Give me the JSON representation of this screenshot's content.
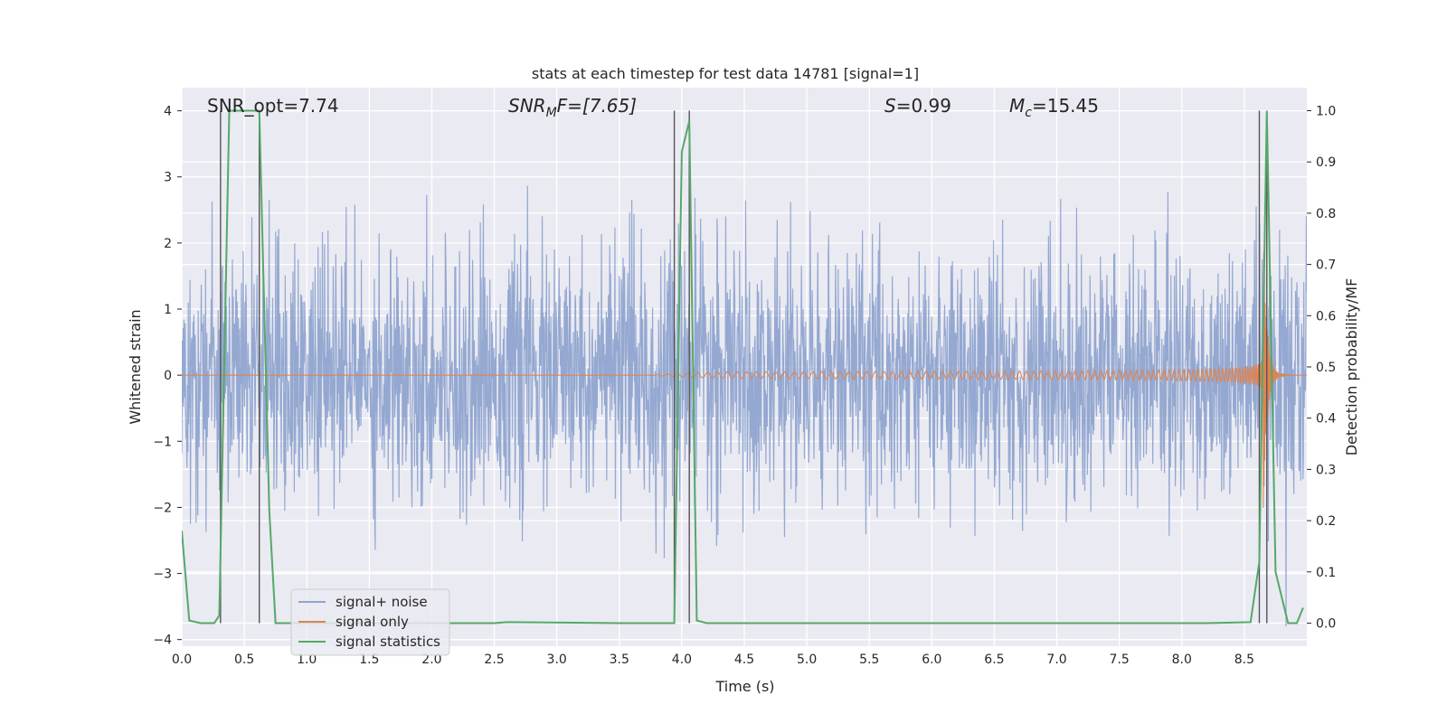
{
  "chart_data": {
    "type": "line",
    "title": "stats at each timestep for test data 14781 [signal=1]",
    "xlabel": "Time (s)",
    "ylabel_left": "Whitened strain",
    "ylabel_right": "Detection probability/MF",
    "xlim": [
      0.0,
      9.0
    ],
    "ylim_left": [
      -4.1,
      4.35
    ],
    "ylim_right": [
      -0.045,
      1.045
    ],
    "x_ticks": [
      "0.0",
      "0.5",
      "1.0",
      "1.5",
      "2.0",
      "2.5",
      "3.0",
      "3.5",
      "4.0",
      "4.5",
      "5.0",
      "5.5",
      "6.0",
      "6.5",
      "7.0",
      "7.5",
      "8.0",
      "8.5"
    ],
    "y_left_ticks": [
      "4",
      "3",
      "2",
      "1",
      "0",
      "−1",
      "−2",
      "−3",
      "−4"
    ],
    "y_right_ticks": [
      "1.0",
      "0.9",
      "0.8",
      "0.7",
      "0.6",
      "0.5",
      "0.4",
      "0.3",
      "0.2",
      "0.1",
      "0.0"
    ],
    "grid": true,
    "legend_position": "lower-left",
    "annotations": {
      "snr_opt": "SNR_opt=7.74",
      "snr_mf_label": "SNR",
      "snr_mf_sub": "M",
      "snr_mf_rest": "F=[7.65]",
      "s_italic": "S",
      "s_value": "=0.99",
      "mc_italic": "M",
      "mc_sub": "c",
      "mc_value": "=15.45"
    },
    "series": [
      {
        "name": "signal+ noise",
        "color": "#8fa4cf",
        "description": "whitened noisy strain, amplitude mostly within ±2.5, peaks to about ±3.8"
      },
      {
        "name": "signal only",
        "color": "#dd8452",
        "chirp_start_time": 4.0,
        "merger_time": 8.65,
        "peak_amplitude": 2.2
      },
      {
        "name": "signal statistics",
        "color": "#55a868",
        "x": [
          0.0,
          0.06,
          0.15,
          0.26,
          0.3,
          0.38,
          0.62,
          0.7,
          0.75,
          0.9,
          2.5,
          2.6,
          3.5,
          3.94,
          4.0,
          4.06,
          4.12,
          4.2,
          8.2,
          8.55,
          8.62,
          8.68,
          8.75,
          8.85,
          8.92,
          8.97
        ],
        "values": [
          0.18,
          0.005,
          0.0,
          0.0,
          0.015,
          1.0,
          1.0,
          0.22,
          0.0,
          0.0,
          0.0,
          0.002,
          0.0,
          0.0,
          0.92,
          0.98,
          0.005,
          0.0,
          0.0,
          0.002,
          0.12,
          1.0,
          0.1,
          0.0,
          0.0,
          0.03
        ]
      }
    ],
    "vertical_markers": [
      0.31,
      0.62,
      3.94,
      4.06,
      8.62,
      8.68
    ]
  }
}
